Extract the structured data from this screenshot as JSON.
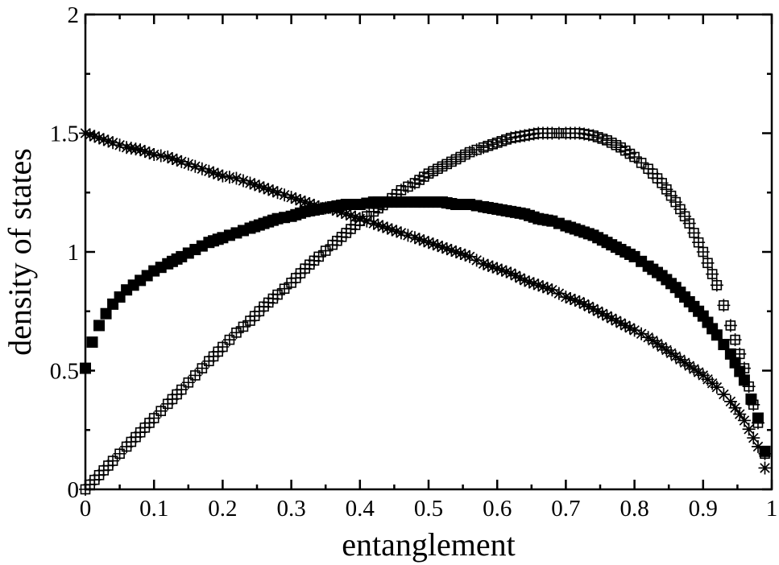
{
  "chart_data": {
    "type": "scatter",
    "title": "",
    "xlabel": "entanglement",
    "ylabel": "density of states",
    "xlim": [
      0,
      1
    ],
    "ylim": [
      0,
      2
    ],
    "grid": false,
    "legend": "none",
    "xticks": [
      {
        "value": 0,
        "label": "0"
      },
      {
        "value": 0.1,
        "label": "0.1"
      },
      {
        "value": 0.2,
        "label": "0.2"
      },
      {
        "value": 0.3,
        "label": "0.3"
      },
      {
        "value": 0.4,
        "label": "0.4"
      },
      {
        "value": 0.5,
        "label": "0.5"
      },
      {
        "value": 0.6,
        "label": "0.6"
      },
      {
        "value": 0.7,
        "label": "0.7"
      },
      {
        "value": 0.8,
        "label": "0.8"
      },
      {
        "value": 0.9,
        "label": "0.9"
      },
      {
        "value": 1,
        "label": "1"
      }
    ],
    "yticks": [
      {
        "value": 0,
        "label": "0"
      },
      {
        "value": 0.5,
        "label": "0.5"
      },
      {
        "value": 1,
        "label": "1"
      },
      {
        "value": 1.5,
        "label": "1.5"
      },
      {
        "value": 2,
        "label": "2"
      }
    ],
    "series": [
      {
        "marker": "open-square-plus",
        "x": [
          0.0,
          0.02,
          0.04,
          0.06,
          0.08,
          0.1,
          0.12,
          0.14,
          0.16,
          0.18,
          0.2,
          0.22,
          0.24,
          0.26,
          0.28,
          0.3,
          0.32,
          0.34,
          0.36,
          0.38,
          0.4,
          0.42,
          0.44,
          0.46,
          0.48,
          0.5,
          0.52,
          0.54,
          0.56,
          0.58,
          0.6,
          0.62,
          0.64,
          0.66,
          0.68,
          0.7,
          0.72,
          0.74,
          0.76,
          0.78,
          0.8,
          0.82,
          0.84,
          0.86,
          0.88,
          0.9,
          0.92,
          0.94,
          0.96,
          0.98,
          0.99
        ],
        "y": [
          0.0,
          0.06,
          0.12,
          0.18,
          0.24,
          0.3,
          0.36,
          0.42,
          0.48,
          0.54,
          0.6,
          0.66,
          0.71,
          0.77,
          0.82,
          0.87,
          0.93,
          0.98,
          1.03,
          1.08,
          1.13,
          1.17,
          1.21,
          1.26,
          1.29,
          1.33,
          1.36,
          1.39,
          1.42,
          1.44,
          1.46,
          1.48,
          1.49,
          1.5,
          1.5,
          1.5,
          1.5,
          1.49,
          1.47,
          1.44,
          1.4,
          1.35,
          1.29,
          1.21,
          1.12,
          1.0,
          0.86,
          0.69,
          0.51,
          0.28,
          0.15
        ]
      },
      {
        "marker": "filled-square",
        "x": [
          0.0,
          0.01,
          0.02,
          0.03,
          0.04,
          0.05,
          0.06,
          0.07,
          0.08,
          0.09,
          0.1,
          0.12,
          0.14,
          0.16,
          0.18,
          0.2,
          0.22,
          0.24,
          0.26,
          0.28,
          0.3,
          0.32,
          0.34,
          0.36,
          0.38,
          0.4,
          0.42,
          0.44,
          0.46,
          0.48,
          0.5,
          0.52,
          0.54,
          0.56,
          0.58,
          0.6,
          0.62,
          0.64,
          0.66,
          0.68,
          0.7,
          0.72,
          0.74,
          0.76,
          0.78,
          0.8,
          0.82,
          0.84,
          0.86,
          0.88,
          0.9,
          0.92,
          0.94,
          0.96,
          0.97,
          0.98,
          0.99
        ],
        "y": [
          0.51,
          0.62,
          0.69,
          0.74,
          0.78,
          0.81,
          0.84,
          0.86,
          0.88,
          0.9,
          0.92,
          0.95,
          0.98,
          1.01,
          1.04,
          1.06,
          1.08,
          1.1,
          1.12,
          1.14,
          1.15,
          1.17,
          1.18,
          1.19,
          1.2,
          1.2,
          1.21,
          1.21,
          1.21,
          1.21,
          1.21,
          1.21,
          1.2,
          1.2,
          1.19,
          1.18,
          1.17,
          1.16,
          1.14,
          1.13,
          1.11,
          1.09,
          1.07,
          1.04,
          1.01,
          0.98,
          0.94,
          0.9,
          0.85,
          0.79,
          0.73,
          0.65,
          0.57,
          0.46,
          0.38,
          0.3,
          0.16
        ]
      },
      {
        "marker": "asterisk",
        "x": [
          0.0,
          0.02,
          0.04,
          0.06,
          0.08,
          0.1,
          0.12,
          0.14,
          0.16,
          0.18,
          0.2,
          0.22,
          0.24,
          0.26,
          0.28,
          0.3,
          0.32,
          0.34,
          0.36,
          0.38,
          0.4,
          0.42,
          0.44,
          0.46,
          0.48,
          0.5,
          0.52,
          0.54,
          0.56,
          0.58,
          0.6,
          0.62,
          0.64,
          0.66,
          0.68,
          0.7,
          0.72,
          0.74,
          0.76,
          0.78,
          0.8,
          0.82,
          0.84,
          0.86,
          0.88,
          0.9,
          0.92,
          0.94,
          0.96,
          0.98,
          0.99
        ],
        "y": [
          1.5,
          1.48,
          1.46,
          1.44,
          1.43,
          1.41,
          1.4,
          1.38,
          1.36,
          1.34,
          1.32,
          1.31,
          1.29,
          1.27,
          1.25,
          1.23,
          1.21,
          1.19,
          1.18,
          1.16,
          1.14,
          1.12,
          1.1,
          1.08,
          1.06,
          1.04,
          1.02,
          1.0,
          0.98,
          0.95,
          0.93,
          0.91,
          0.88,
          0.86,
          0.84,
          0.81,
          0.79,
          0.76,
          0.73,
          0.7,
          0.67,
          0.64,
          0.6,
          0.56,
          0.52,
          0.48,
          0.43,
          0.37,
          0.29,
          0.18,
          0.09
        ]
      }
    ]
  }
}
